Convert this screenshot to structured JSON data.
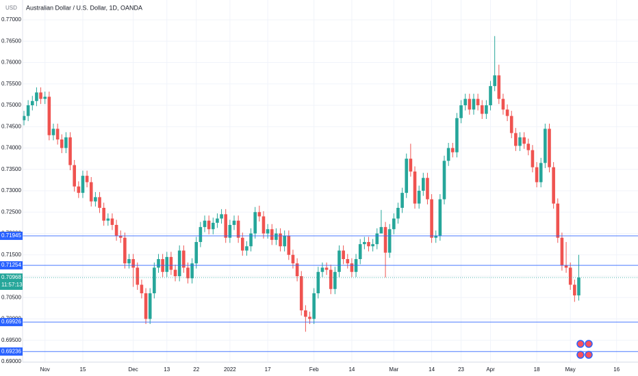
{
  "chart_data": {
    "type": "candlestick",
    "title": "Australian Dollar / U.S. Dollar, 1D, OANDA",
    "currency": "USD",
    "up_color": "#26a69a",
    "down_color": "#ef5350",
    "level_color": "#2962ff",
    "ylim": [
      0.68984,
      0.77464
    ],
    "yticks": [
      {
        "value": 0.69,
        "label": "0.69000"
      },
      {
        "value": 0.695,
        "label": "0.69500"
      },
      {
        "value": 0.7,
        "label": "0.70000"
      },
      {
        "value": 0.705,
        "label": "0.70500"
      },
      {
        "value": 0.71,
        "label": "0.71000"
      },
      {
        "value": 0.715,
        "label": "0.71500"
      },
      {
        "value": 0.72,
        "label": "0.72000"
      },
      {
        "value": 0.725,
        "label": "0.72500"
      },
      {
        "value": 0.73,
        "label": "0.73000"
      },
      {
        "value": 0.735,
        "label": "0.73500"
      },
      {
        "value": 0.74,
        "label": "0.74000"
      },
      {
        "value": 0.745,
        "label": "0.74500"
      },
      {
        "value": 0.75,
        "label": "0.75000"
      },
      {
        "value": 0.755,
        "label": "0.75500"
      },
      {
        "value": 0.76,
        "label": "0.76000"
      },
      {
        "value": 0.765,
        "label": "0.76500"
      },
      {
        "value": 0.77,
        "label": "0.77000"
      }
    ],
    "levels": [
      0.71945,
      0.71254,
      0.69926,
      0.69236
    ],
    "last_price": 0.70968,
    "countdown": "11:57:13",
    "categories": [
      null,
      null,
      null,
      null,
      null,
      "Nov",
      null,
      null,
      null,
      null,
      null,
      null,
      null,
      null,
      "15",
      null,
      null,
      null,
      null,
      null,
      null,
      null,
      null,
      null,
      null,
      null,
      "Dec",
      null,
      null,
      null,
      null,
      null,
      null,
      null,
      "13",
      null,
      null,
      null,
      null,
      null,
      null,
      "22",
      null,
      null,
      null,
      null,
      null,
      null,
      null,
      "2022",
      null,
      null,
      null,
      null,
      null,
      null,
      null,
      null,
      "17",
      null,
      null,
      null,
      null,
      null,
      null,
      null,
      null,
      null,
      null,
      "Feb",
      null,
      null,
      null,
      null,
      null,
      null,
      null,
      null,
      "14",
      null,
      null,
      null,
      null,
      null,
      null,
      null,
      null,
      null,
      "Mar",
      null,
      null,
      null,
      null,
      null,
      null,
      null,
      null,
      "14",
      null,
      null,
      null,
      null,
      null,
      null,
      "23",
      null,
      null,
      null,
      null,
      null,
      null,
      "Apr",
      null,
      null,
      null,
      null,
      null,
      null,
      null,
      null,
      null,
      null,
      "18",
      null,
      null,
      null,
      null,
      null,
      null,
      null,
      "May",
      null,
      null,
      null,
      null,
      null,
      null,
      null,
      null,
      null,
      null,
      "16"
    ],
    "open": [
      0.7465,
      0.7475,
      0.75,
      0.751,
      0.753,
      0.7515,
      0.752,
      0.743,
      0.7445,
      0.742,
      0.74,
      0.7425,
      0.736,
      0.731,
      0.7295,
      0.7335,
      0.732,
      0.7275,
      0.7285,
      0.726,
      0.723,
      0.7235,
      0.722,
      0.7195,
      0.719,
      0.713,
      0.714,
      0.712,
      0.708,
      0.706,
      0.7,
      0.706,
      0.712,
      0.714,
      0.711,
      0.7145,
      0.7115,
      0.71,
      0.716,
      0.712,
      0.7095,
      0.713,
      0.718,
      0.7215,
      0.723,
      0.721,
      0.7225,
      0.7235,
      0.7245,
      0.719,
      0.722,
      0.723,
      0.719,
      0.716,
      0.717,
      0.72,
      0.725,
      0.724,
      0.72,
      0.721,
      0.7185,
      0.72,
      0.717,
      0.7195,
      0.715,
      0.713,
      0.71,
      0.702,
      0.7005,
      0.7,
      0.706,
      0.711,
      0.712,
      0.7115,
      0.707,
      0.711,
      0.716,
      0.714,
      0.713,
      0.711,
      0.714,
      0.7175,
      0.718,
      0.717,
      0.7175,
      0.72,
      0.7215,
      0.7155,
      0.721,
      0.7235,
      0.726,
      0.7295,
      0.7375,
      0.7345,
      0.727,
      0.73,
      0.733,
      0.728,
      0.719,
      0.7195,
      0.728,
      0.737,
      0.74,
      0.739,
      0.747,
      0.75,
      0.7515,
      0.749,
      0.7515,
      0.75,
      0.748,
      0.75,
      0.7545,
      0.757,
      0.7515,
      0.749,
      0.7475,
      0.7435,
      0.7405,
      0.7425,
      0.741,
      0.7395,
      0.7355,
      0.732,
      0.7365,
      0.7445,
      0.7355,
      0.727,
      0.719,
      0.7125,
      0.712,
      0.708,
      0.7055,
      null,
      null,
      null,
      null,
      null,
      null,
      null,
      null,
      null
    ],
    "high": [
      0.7487,
      0.7512,
      0.7522,
      0.7542,
      0.7542,
      0.7532,
      0.7532,
      0.7457,
      0.7457,
      0.7432,
      0.7437,
      0.7437,
      0.7372,
      0.7322,
      0.7347,
      0.7347,
      0.7332,
      0.7297,
      0.7297,
      0.7272,
      0.7247,
      0.7247,
      0.7232,
      0.7207,
      0.7202,
      0.7152,
      0.7152,
      0.7132,
      0.7092,
      0.7072,
      0.7072,
      0.7132,
      0.7152,
      0.7152,
      0.7157,
      0.7157,
      0.7127,
      0.7172,
      0.7172,
      0.7132,
      0.7142,
      0.7192,
      0.7227,
      0.7242,
      0.7242,
      0.7237,
      0.7247,
      0.7257,
      0.7257,
      0.7232,
      0.7242,
      0.7242,
      0.7202,
      0.7182,
      0.7212,
      0.7262,
      0.7265,
      0.7252,
      0.7222,
      0.7222,
      0.7212,
      0.7212,
      0.7207,
      0.7207,
      0.7162,
      0.7142,
      0.7112,
      0.7032,
      0.7017,
      0.7072,
      0.7122,
      0.7132,
      0.7132,
      0.7127,
      0.7122,
      0.7172,
      0.7172,
      0.7152,
      0.7142,
      0.7152,
      0.7187,
      0.7192,
      0.7192,
      0.7187,
      0.7212,
      0.7255,
      0.7227,
      0.7222,
      0.7247,
      0.7272,
      0.7307,
      0.7387,
      0.741,
      0.7357,
      0.7312,
      0.7342,
      0.7342,
      0.7292,
      0.7207,
      0.7292,
      0.7382,
      0.7412,
      0.7412,
      0.7482,
      0.7512,
      0.7527,
      0.7527,
      0.7527,
      0.7527,
      0.7512,
      0.7512,
      0.7557,
      0.7662,
      0.7595,
      0.7527,
      0.7502,
      0.7487,
      0.7447,
      0.7437,
      0.7437,
      0.7422,
      0.7407,
      0.7367,
      0.7377,
      0.7457,
      0.7457,
      0.7367,
      0.7282,
      0.7202,
      0.718,
      0.7132,
      0.7092,
      0.715,
      null,
      null,
      null,
      null,
      null,
      null,
      null,
      null,
      null
    ],
    "low": [
      0.7453,
      0.7463,
      0.7488,
      0.7498,
      0.7503,
      0.7503,
      0.7418,
      0.7418,
      0.7408,
      0.7388,
      0.7388,
      0.7348,
      0.7298,
      0.7283,
      0.7283,
      0.7308,
      0.7263,
      0.7263,
      0.7248,
      0.7218,
      0.7218,
      0.7208,
      0.7183,
      0.7178,
      0.7118,
      0.7118,
      0.7075,
      0.7068,
      0.7048,
      0.6988,
      0.6988,
      0.7048,
      0.7108,
      0.7098,
      0.7098,
      0.7103,
      0.7088,
      0.7088,
      0.7108,
      0.7083,
      0.7083,
      0.7118,
      0.7168,
      0.7203,
      0.7198,
      0.7198,
      0.7213,
      0.7223,
      0.7178,
      0.7178,
      0.7208,
      0.7178,
      0.7148,
      0.7148,
      0.7158,
      0.7188,
      0.7228,
      0.7188,
      0.7188,
      0.7173,
      0.7173,
      0.7158,
      0.7158,
      0.7138,
      0.7118,
      0.7088,
      0.7008,
      0.697,
      0.6988,
      0.6988,
      0.7048,
      0.7098,
      0.7103,
      0.7058,
      0.7058,
      0.7098,
      0.7128,
      0.7118,
      0.7098,
      0.7098,
      0.7128,
      0.7163,
      0.7158,
      0.7158,
      0.7163,
      0.7203,
      0.7097,
      0.7143,
      0.7198,
      0.7223,
      0.7248,
      0.7283,
      0.7333,
      0.7258,
      0.7258,
      0.7288,
      0.7268,
      0.7178,
      0.7178,
      0.7183,
      0.7268,
      0.7358,
      0.7378,
      0.7378,
      0.7458,
      0.7488,
      0.7478,
      0.7478,
      0.7488,
      0.7468,
      0.7468,
      0.7488,
      0.7533,
      0.7503,
      0.7478,
      0.7463,
      0.7423,
      0.7393,
      0.7393,
      0.7398,
      0.7383,
      0.7343,
      0.7308,
      0.7308,
      0.7353,
      0.7343,
      0.7258,
      0.7178,
      0.7113,
      0.7108,
      0.7068,
      0.704,
      0.7043,
      null,
      null,
      null,
      null,
      null,
      null,
      null,
      null,
      null
    ],
    "close": [
      0.7475,
      0.75,
      0.751,
      0.753,
      0.7515,
      0.752,
      0.743,
      0.7445,
      0.742,
      0.74,
      0.7425,
      0.736,
      0.731,
      0.7295,
      0.7335,
      0.732,
      0.7275,
      0.7285,
      0.726,
      0.723,
      0.7235,
      0.722,
      0.7195,
      0.719,
      0.713,
      0.714,
      0.712,
      0.708,
      0.706,
      0.7,
      0.706,
      0.712,
      0.714,
      0.711,
      0.7145,
      0.7115,
      0.71,
      0.716,
      0.712,
      0.7095,
      0.713,
      0.718,
      0.7215,
      0.723,
      0.721,
      0.7225,
      0.7235,
      0.7245,
      0.719,
      0.722,
      0.723,
      0.719,
      0.716,
      0.717,
      0.72,
      0.725,
      0.724,
      0.72,
      0.721,
      0.7185,
      0.72,
      0.717,
      0.7195,
      0.715,
      0.713,
      0.71,
      0.702,
      0.7005,
      0.7,
      0.706,
      0.711,
      0.712,
      0.7115,
      0.707,
      0.711,
      0.716,
      0.714,
      0.713,
      0.711,
      0.714,
      0.7175,
      0.718,
      0.717,
      0.7175,
      0.72,
      0.7215,
      0.7155,
      0.721,
      0.7235,
      0.726,
      0.7295,
      0.7375,
      0.7345,
      0.727,
      0.73,
      0.733,
      0.728,
      0.719,
      0.7195,
      0.728,
      0.737,
      0.74,
      0.739,
      0.747,
      0.75,
      0.7515,
      0.749,
      0.7515,
      0.75,
      0.748,
      0.75,
      0.7545,
      0.757,
      0.7515,
      0.749,
      0.7475,
      0.7435,
      0.7405,
      0.7425,
      0.741,
      0.7395,
      0.7355,
      0.732,
      0.7365,
      0.7445,
      0.7355,
      0.727,
      0.719,
      0.7125,
      0.712,
      0.708,
      0.7055,
      0.7097,
      null,
      null,
      null,
      null,
      null,
      null,
      null,
      null,
      null
    ]
  }
}
